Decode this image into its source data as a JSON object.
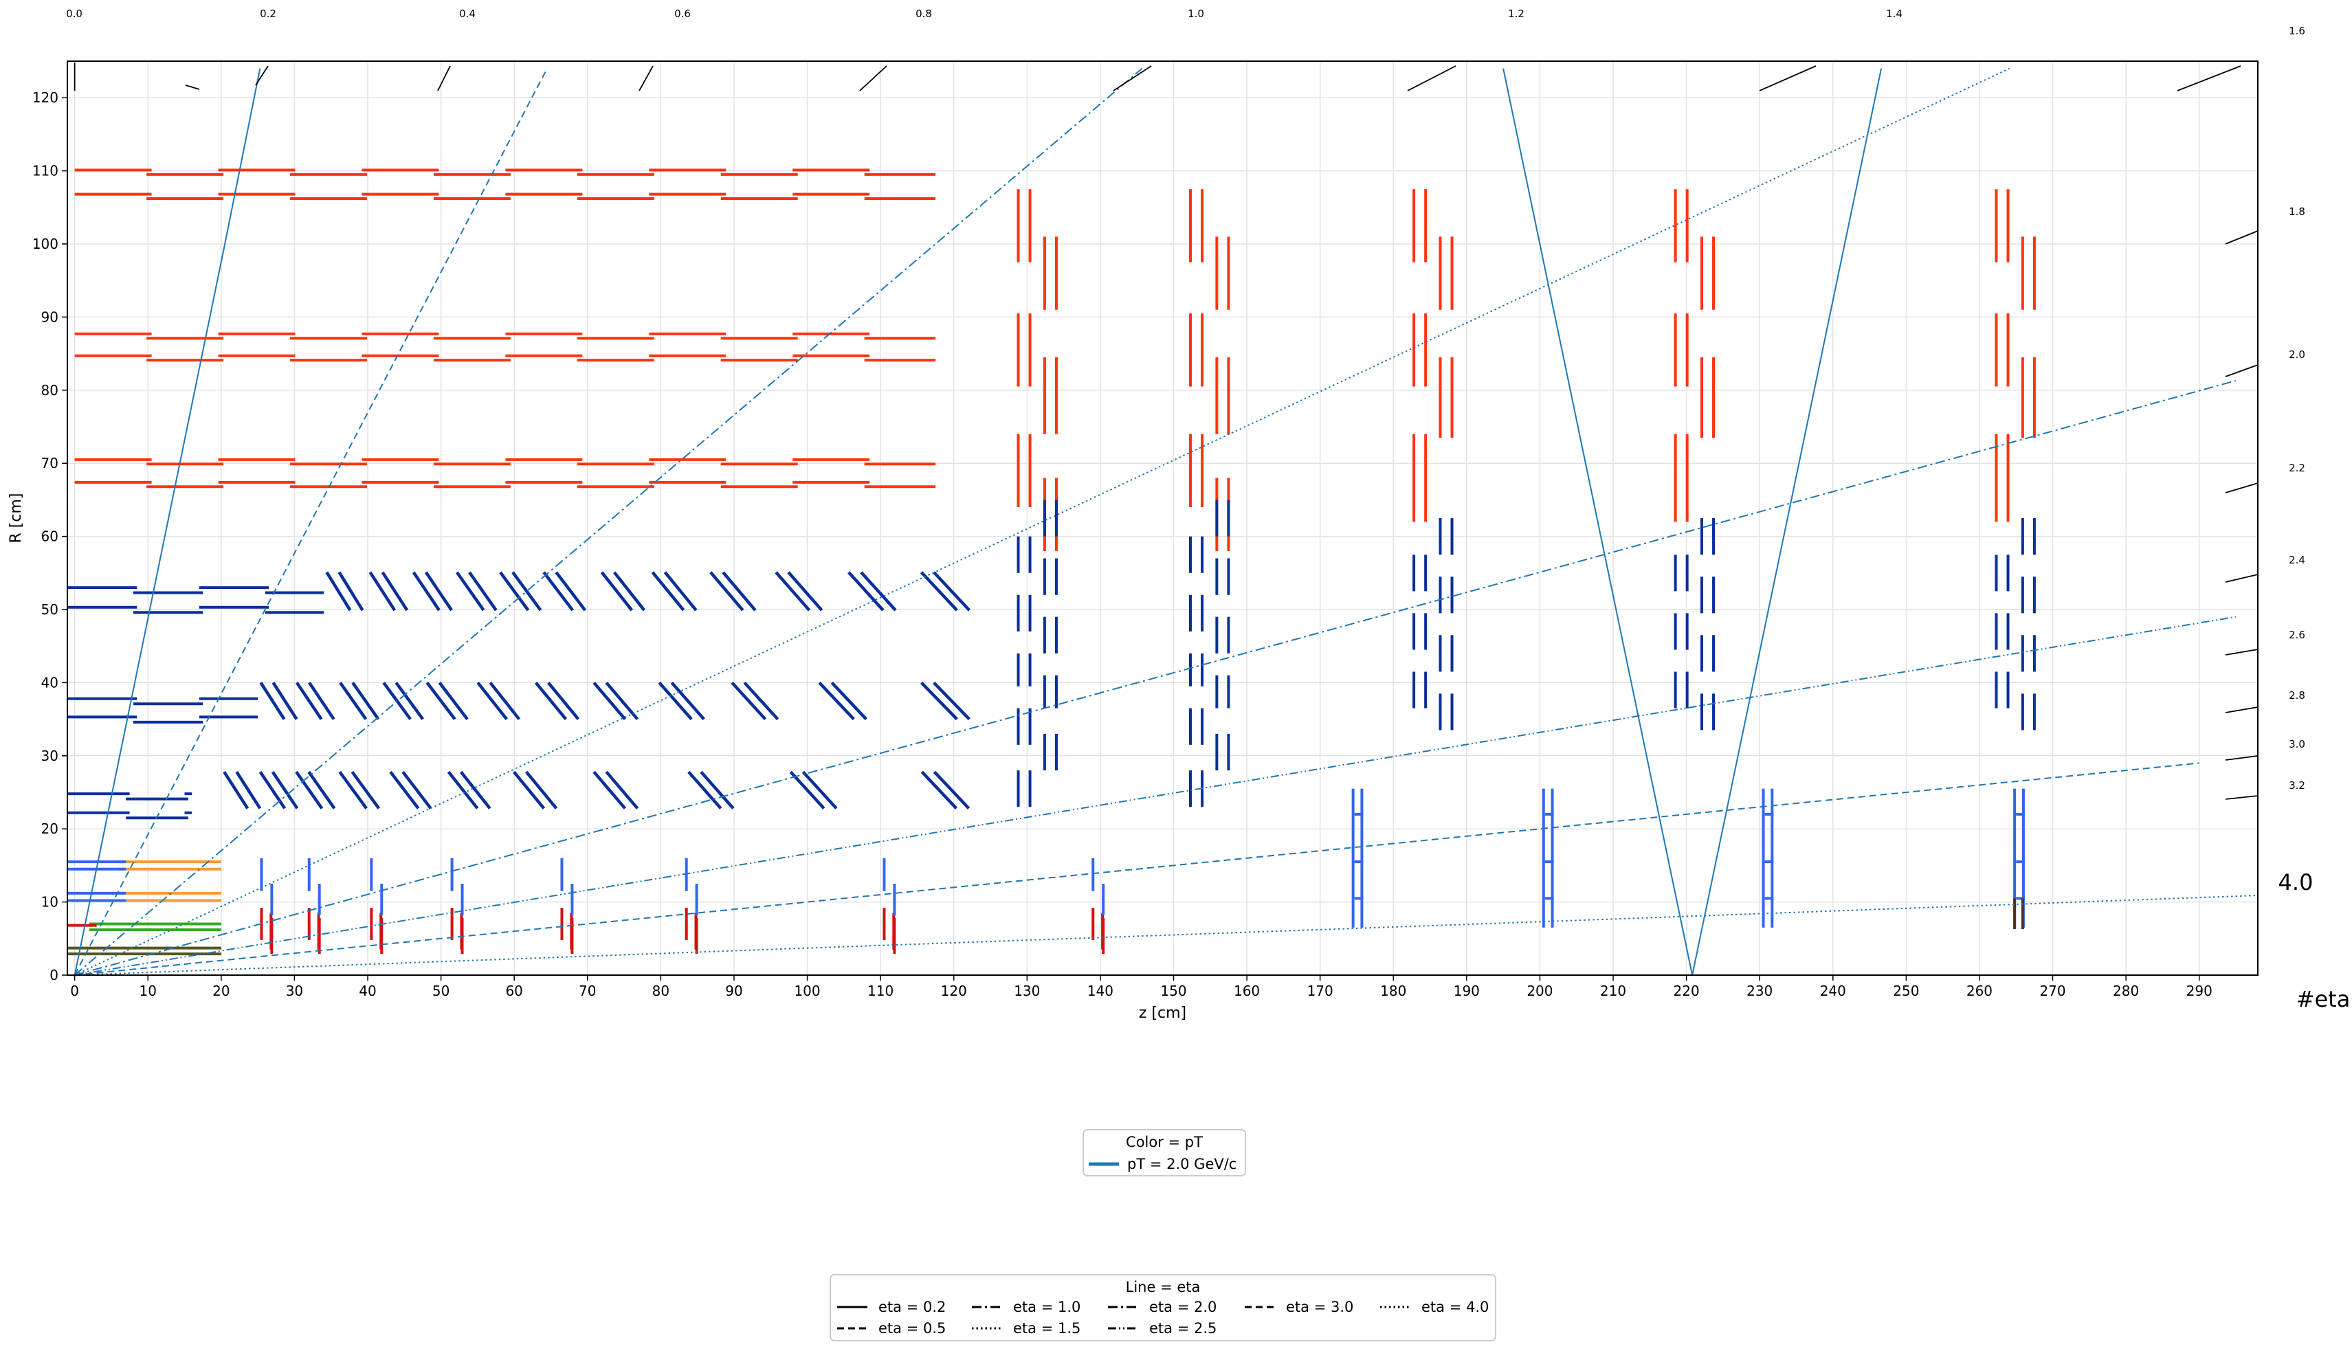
{
  "chart_data": {
    "type": "line",
    "xlabel": "z [cm]",
    "ylabel": "R [cm]",
    "xlim": [
      -1,
      298
    ],
    "ylim": [
      0,
      125
    ],
    "grid": true,
    "x_ticks": [
      0,
      10,
      20,
      30,
      40,
      50,
      60,
      70,
      80,
      90,
      100,
      110,
      120,
      130,
      140,
      150,
      160,
      170,
      180,
      190,
      200,
      210,
      220,
      230,
      240,
      250,
      260,
      270,
      280,
      290
    ],
    "y_ticks": [
      0,
      10,
      20,
      30,
      40,
      50,
      60,
      70,
      80,
      90,
      100,
      110,
      120
    ],
    "eta_top_labels": [
      {
        "eta": 0.0,
        "label": "0.0"
      },
      {
        "eta": 0.2,
        "label": "0.2"
      },
      {
        "eta": 0.4,
        "label": "0.4"
      },
      {
        "eta": 0.6,
        "label": "0.6"
      },
      {
        "eta": 0.8,
        "label": "0.8"
      },
      {
        "eta": 1.0,
        "label": "1.0"
      },
      {
        "eta": 1.2,
        "label": "1.2"
      },
      {
        "eta": 1.4,
        "label": "1.4"
      }
    ],
    "eta_right_labels": [
      {
        "eta": 1.6,
        "label": "1.6"
      },
      {
        "eta": 1.8,
        "label": "1.8"
      },
      {
        "eta": 2.0,
        "label": "2.0"
      },
      {
        "eta": 2.2,
        "label": "2.2"
      },
      {
        "eta": 2.4,
        "label": "2.4"
      },
      {
        "eta": 2.6,
        "label": "2.6"
      },
      {
        "eta": 2.8,
        "label": "2.8"
      },
      {
        "eta": 3.0,
        "label": "3.0"
      },
      {
        "eta": 3.2,
        "label": "3.2"
      }
    ],
    "eta_big_label": "4.0",
    "eta_axis_label": "#eta",
    "track_color": "#1f77b4",
    "tracks": [
      {
        "eta": 0.2,
        "style": "solid",
        "points": [
          [
            0,
            0
          ],
          [
            8.2,
            40
          ],
          [
            16.4,
            80
          ],
          [
            20.5,
            100
          ],
          [
            25.3,
            124
          ]
        ]
      },
      {
        "eta": 0.5,
        "style": "dashed",
        "points": [
          [
            0,
            0
          ],
          [
            20.8,
            40
          ],
          [
            41.6,
            80
          ],
          [
            62.4,
            120
          ],
          [
            64.5,
            124
          ]
        ]
      },
      {
        "eta": 1.0,
        "style": "dashdot",
        "points": [
          [
            0,
            0
          ],
          [
            47,
            40
          ],
          [
            94,
            80
          ],
          [
            141,
            120
          ],
          [
            145.7,
            124
          ]
        ]
      },
      {
        "eta": 1.5,
        "style": "dotted",
        "points": [
          [
            0,
            0
          ],
          [
            85.2,
            40
          ],
          [
            170.4,
            80
          ],
          [
            255.6,
            120
          ],
          [
            264.1,
            124
          ]
        ]
      },
      {
        "eta": 2.0,
        "style": "dashdot",
        "points": [
          [
            0,
            0
          ],
          [
            100,
            27.6
          ],
          [
            200,
            55.1
          ],
          [
            295,
            81.3
          ]
        ]
      },
      {
        "eta": 2.5,
        "style": "dashdotdot",
        "points": [
          [
            0,
            0
          ],
          [
            100,
            16.6
          ],
          [
            200,
            33.2
          ],
          [
            295,
            49.0
          ]
        ]
      },
      {
        "eta": 3.0,
        "style": "dashed",
        "points": [
          [
            0,
            0
          ],
          [
            100,
            10
          ],
          [
            200,
            20
          ],
          [
            290,
            29
          ]
        ]
      },
      {
        "eta": 4.0,
        "style": "dotted",
        "points": [
          [
            0,
            0
          ],
          [
            100,
            3.7
          ],
          [
            200,
            7.3
          ],
          [
            298,
            10.9
          ]
        ]
      },
      {
        "eta": 0.2,
        "style": "solid",
        "points": [
          [
            220.8,
            0
          ],
          [
            195,
            124
          ]
        ]
      },
      {
        "eta": 0.2,
        "style": "solid",
        "points": [
          [
            220.8,
            0
          ],
          [
            246.6,
            124
          ]
        ]
      }
    ],
    "detector_colors": {
      "outer_tracker": "#ff3311",
      "tilted_module": "#0a2f99",
      "inner_pixel_barrel": "#3366ee",
      "pixel_endcap": "#d41111",
      "barrel_orange": "#ff9933",
      "barrel_green": "#33aa22",
      "barrel_olive": "#555522",
      "endcap_blue": "#3366ee",
      "dark_brown": "#553311"
    },
    "legend_color": {
      "title": "Color = pT",
      "entries": [
        {
          "label": "pT = 2.0 GeV/c",
          "color": "#1f77b4"
        }
      ]
    },
    "legend_line": {
      "title": "Line = eta",
      "entries": [
        {
          "label": "eta = 0.2",
          "style": "solid"
        },
        {
          "label": "eta = 0.5",
          "style": "dashed"
        },
        {
          "label": "eta = 1.0",
          "style": "dashdot"
        },
        {
          "label": "eta = 1.5",
          "style": "dotted"
        },
        {
          "label": "eta = 2.0",
          "style": "dashdot"
        },
        {
          "label": "eta = 2.5",
          "style": "dashdotdot"
        },
        {
          "label": "eta = 3.0",
          "style": "dashed"
        },
        {
          "label": "eta = 4.0",
          "style": "dotted"
        }
      ]
    }
  }
}
